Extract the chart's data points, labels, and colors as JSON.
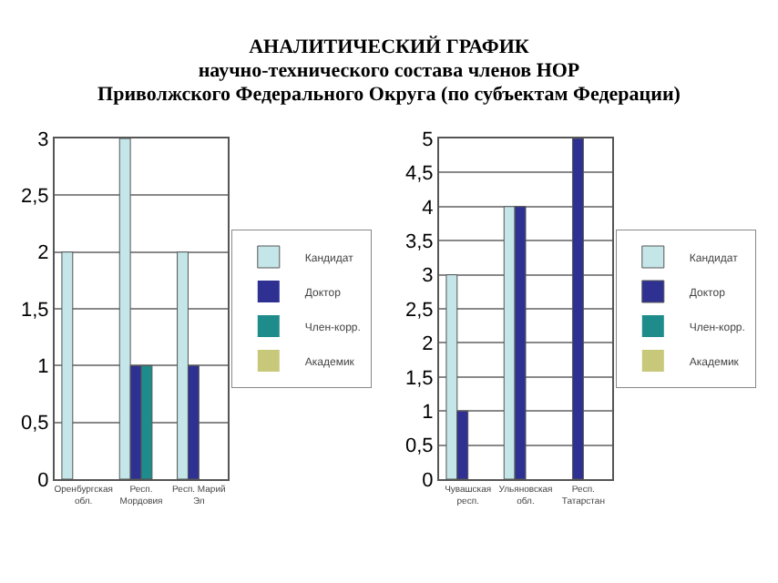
{
  "chart_data": [
    {
      "type": "bar",
      "title": "АНАЛИТИЧЕСКИЙ ГРАФИК\nнаучно-технического состава членов НОР\nПриволжского Федерального Округа (по субъектам Федерации)",
      "categories": [
        "Оренбургская обл.",
        "Респ. Мордовия",
        "Респ. Марий Эл"
      ],
      "series": [
        {
          "name": "Кандидат",
          "color": "#c4e6e8",
          "values": [
            2,
            3,
            2
          ]
        },
        {
          "name": "Доктор",
          "color": "#2e3192",
          "values": [
            0,
            1,
            1
          ]
        },
        {
          "name": "Член-корр.",
          "color": "#1f8c8c",
          "values": [
            0,
            1,
            0
          ]
        },
        {
          "name": "Академик",
          "color": "#c8c87a",
          "values": [
            0,
            0,
            0
          ]
        }
      ],
      "ylim": [
        0,
        3
      ],
      "yticks": [
        0,
        {
          "value": 0.5,
          "label": "0,5"
        },
        1,
        {
          "value": 1.5,
          "label": "1,5"
        },
        2,
        {
          "value": 2.5,
          "label": "2,5"
        },
        3
      ],
      "grid": "y",
      "legend": "right"
    },
    {
      "type": "bar",
      "categories": [
        "Чувашская респ.",
        "Ульяновская обл.",
        "Респ. Татарстан"
      ],
      "series": [
        {
          "name": "Кандидат",
          "color": "#c4e6e8",
          "values": [
            3,
            4,
            0
          ]
        },
        {
          "name": "Доктор",
          "color": "#2e3192",
          "values": [
            1,
            4,
            5
          ]
        },
        {
          "name": "Член-корр.",
          "color": "#1f8c8c",
          "values": [
            0,
            0,
            0
          ]
        },
        {
          "name": "Академик",
          "color": "#c8c87a",
          "values": [
            0,
            0,
            0
          ]
        }
      ],
      "ylim": [
        0,
        5
      ],
      "yticks": [
        0,
        {
          "value": 0.5,
          "label": "0,5"
        },
        1,
        {
          "value": 1.5,
          "label": "1,5"
        },
        2,
        {
          "value": 2.5,
          "label": "2,5"
        },
        3,
        {
          "value": 3.5,
          "label": "3,5"
        },
        4,
        {
          "value": 4.5,
          "label": "4,5"
        },
        5
      ],
      "grid": "y",
      "legend": "right"
    }
  ]
}
